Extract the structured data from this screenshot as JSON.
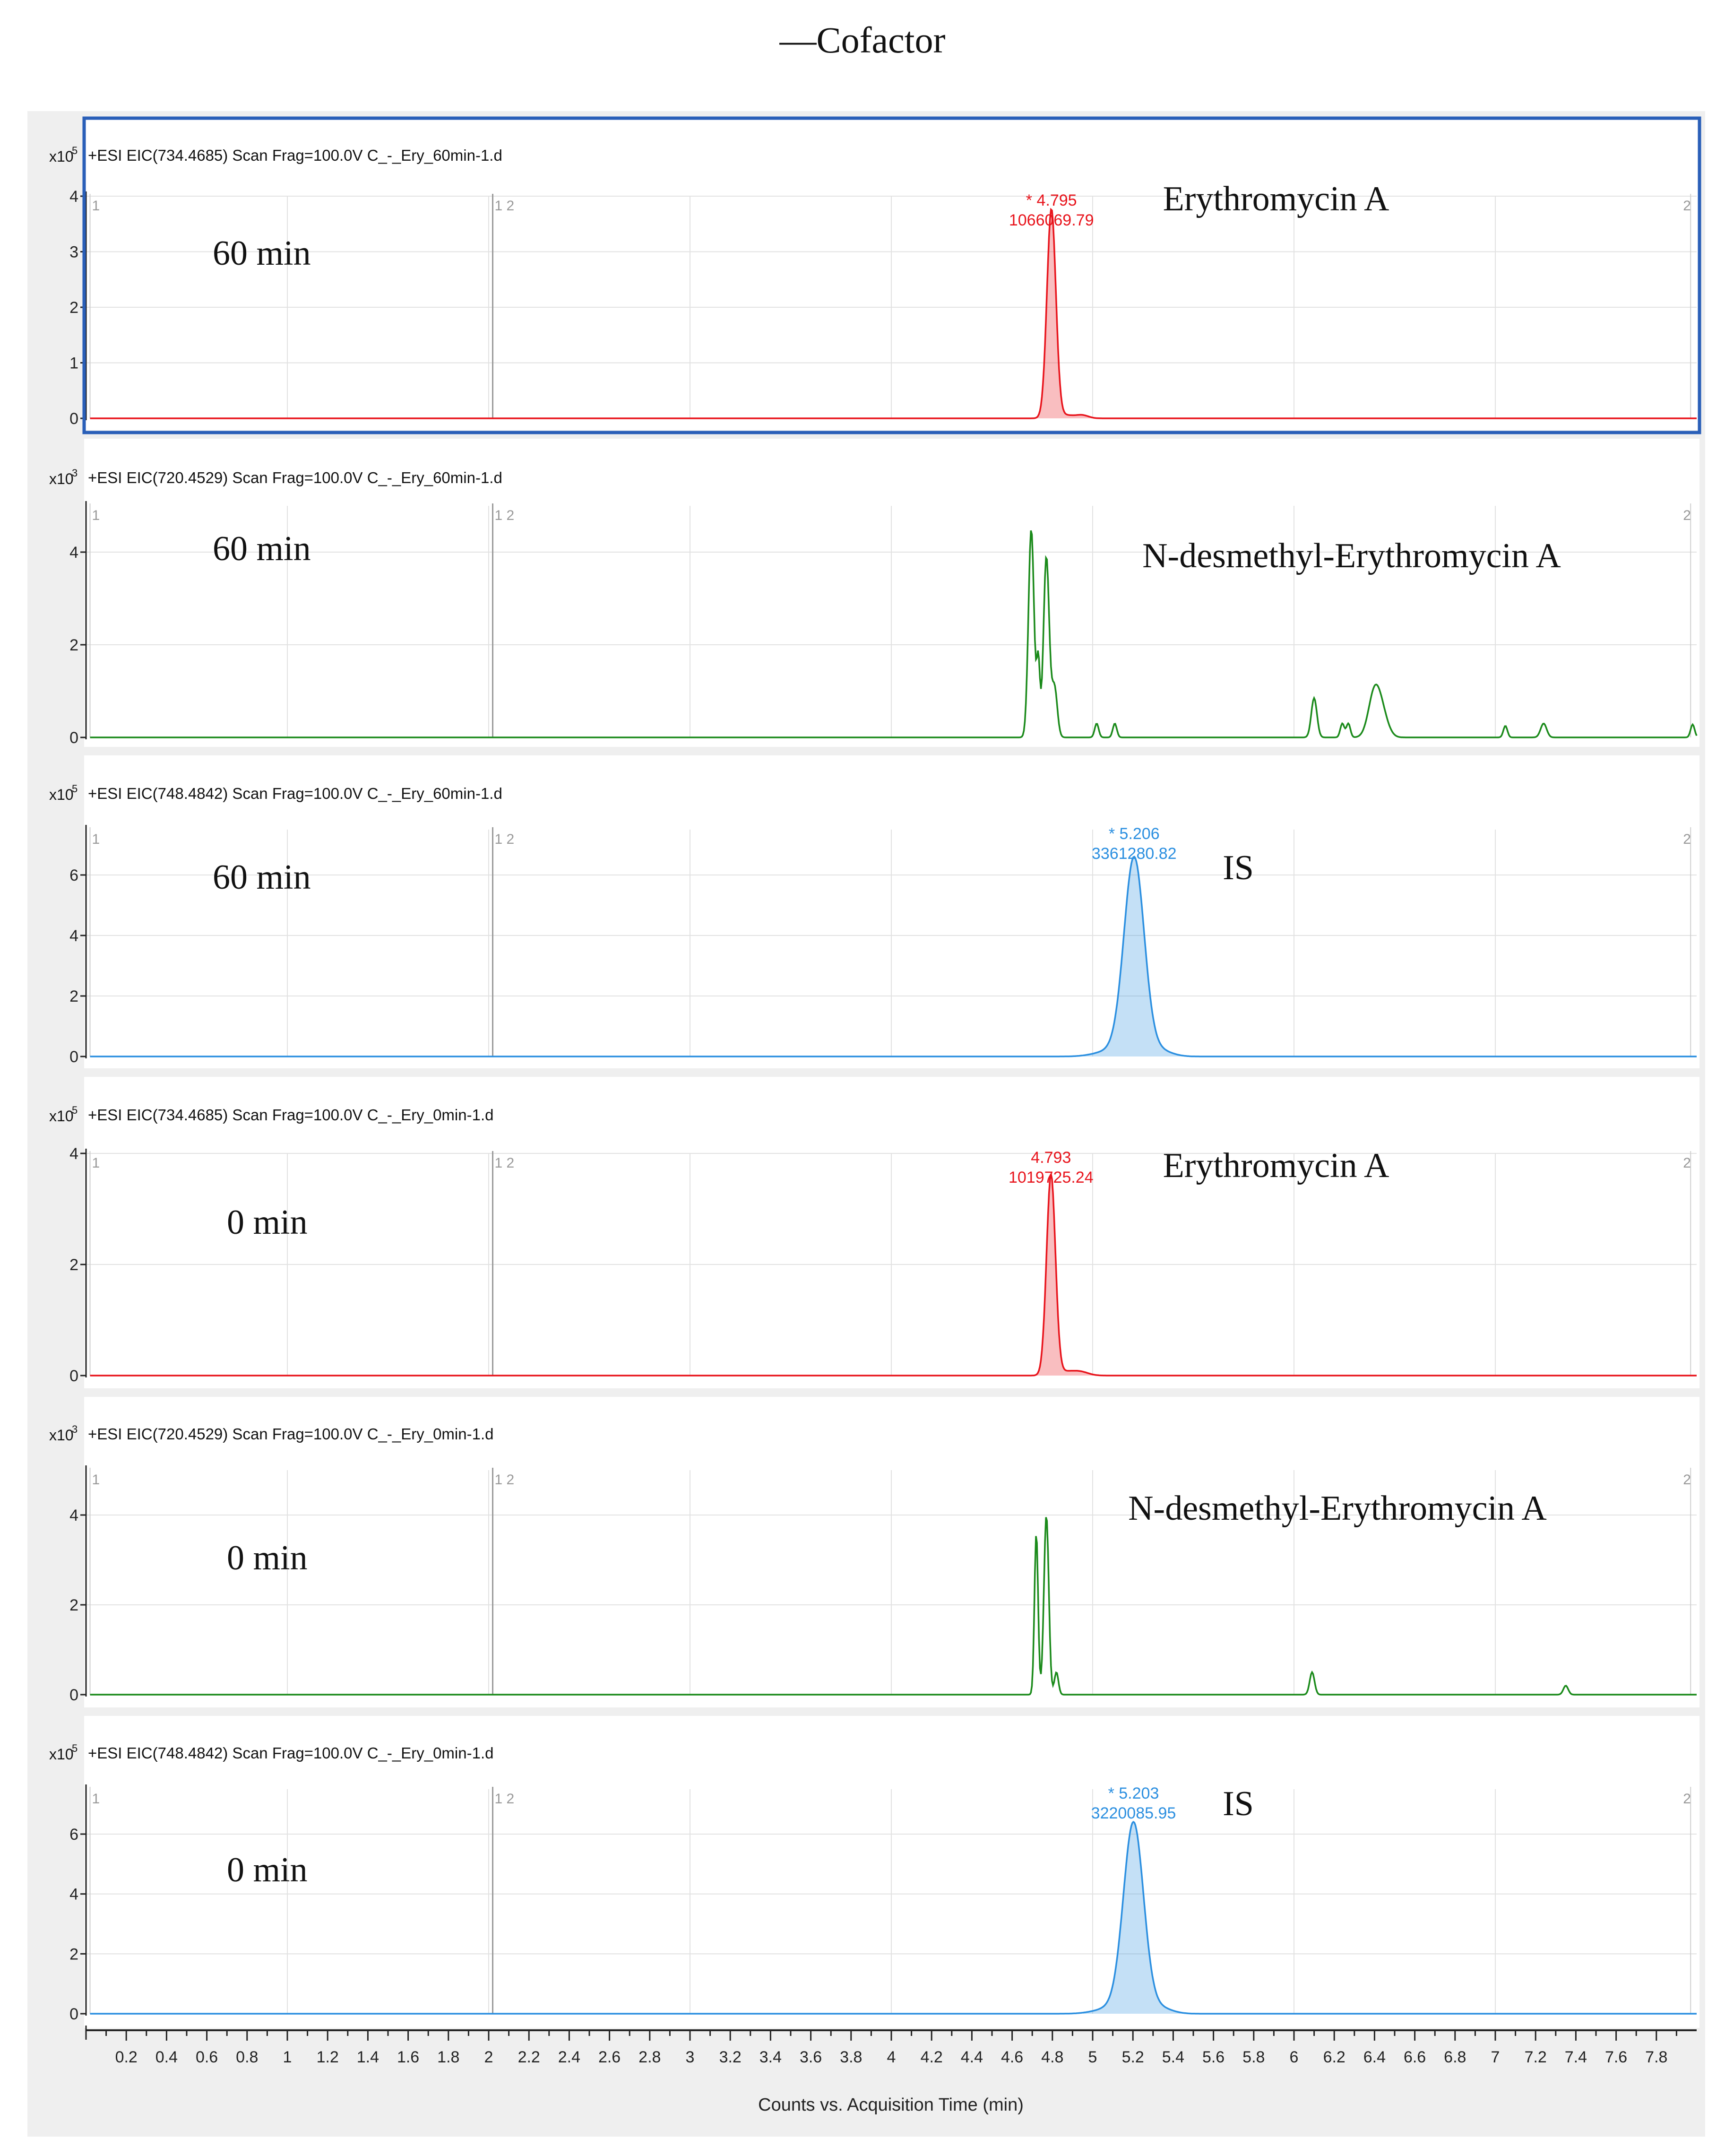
{
  "figure": {
    "title": "—Cofactor"
  },
  "chart_data": {
    "type": "line",
    "xlabel": "Counts vs. Acquisition Time (min)",
    "xlim": [
      0,
      8
    ],
    "x_ticks": [
      0.2,
      0.4,
      0.6,
      0.8,
      1,
      1.2,
      1.4,
      1.6,
      1.8,
      2,
      2.2,
      2.4,
      2.6,
      2.8,
      3,
      3.2,
      3.4,
      3.6,
      3.8,
      4,
      4.2,
      4.4,
      4.6,
      4.8,
      5,
      5.2,
      5.4,
      5.6,
      5.8,
      6,
      6.2,
      6.4,
      6.6,
      6.8,
      7,
      7.2,
      7.4,
      7.6,
      7.8
    ],
    "segment_markers": [
      {
        "x": 0.02,
        "label": "1"
      },
      {
        "x": 2.02,
        "label": "1 2"
      },
      {
        "x": 7.97,
        "label": "2"
      }
    ],
    "panels": [
      {
        "header": "+ESI EIC(734.4685) Scan Frag=100.0V C_-_Ery_60min-1.d",
        "multiplier": "x10",
        "exponent": "5",
        "color": "#e8141c",
        "highlighted": true,
        "ylim": [
          0,
          4
        ],
        "y_ticks": [
          0,
          1,
          2,
          3,
          4
        ],
        "annotation_time": "60 min",
        "compound": "Erythromycin A",
        "peak_label": {
          "rt": "* 4.795",
          "area": "1066069.79"
        },
        "filled": true,
        "peaks": [
          {
            "x": 4.795,
            "y": 3.75,
            "w": 0.022
          },
          {
            "x": 4.86,
            "y": 0.06,
            "w": 0.05
          },
          {
            "x": 4.95,
            "y": 0.05,
            "w": 0.03
          }
        ]
      },
      {
        "header": "+ESI EIC(720.4529) Scan Frag=100.0V C_-_Ery_60min-1.d",
        "multiplier": "x10",
        "exponent": "3",
        "color": "#1a8a1a",
        "highlighted": false,
        "ylim": [
          0,
          5
        ],
        "y_ticks": [
          0,
          2,
          4
        ],
        "annotation_time": "60 min",
        "compound": "N-desmethyl-Erythromycin A",
        "filled": false,
        "peaks": [
          {
            "x": 4.695,
            "y": 4.5,
            "w": 0.014
          },
          {
            "x": 4.73,
            "y": 1.6,
            "w": 0.008
          },
          {
            "x": 4.77,
            "y": 3.9,
            "w": 0.014
          },
          {
            "x": 4.81,
            "y": 1.1,
            "w": 0.014
          },
          {
            "x": 5.02,
            "y": 0.3,
            "w": 0.01
          },
          {
            "x": 5.11,
            "y": 0.3,
            "w": 0.01
          },
          {
            "x": 6.1,
            "y": 0.85,
            "w": 0.014
          },
          {
            "x": 6.24,
            "y": 0.3,
            "w": 0.01
          },
          {
            "x": 6.27,
            "y": 0.3,
            "w": 0.01
          },
          {
            "x": 6.4,
            "y": 0.95,
            "w": 0.03
          },
          {
            "x": 6.44,
            "y": 0.4,
            "w": 0.03
          },
          {
            "x": 7.05,
            "y": 0.25,
            "w": 0.01
          },
          {
            "x": 7.24,
            "y": 0.3,
            "w": 0.015
          },
          {
            "x": 7.98,
            "y": 0.28,
            "w": 0.01
          }
        ]
      },
      {
        "header": "+ESI EIC(748.4842) Scan Frag=100.0V C_-_Ery_60min-1.d",
        "multiplier": "x10",
        "exponent": "5",
        "color": "#2b8fe0",
        "highlighted": false,
        "ylim": [
          0,
          7.5
        ],
        "y_ticks": [
          0,
          2,
          4,
          6
        ],
        "annotation_time": "60 min",
        "compound": "IS",
        "peak_label": {
          "rt": "* 5.206",
          "area": "3361280.82"
        },
        "filled": true,
        "peaks": [
          {
            "x": 5.206,
            "y": 6.5,
            "w": 0.05
          },
          {
            "x": 5.1,
            "y": 0.2,
            "w": 0.08
          },
          {
            "x": 5.33,
            "y": 0.2,
            "w": 0.06
          }
        ]
      },
      {
        "header": "+ESI EIC(734.4685) Scan Frag=100.0V C_-_Ery_0min-1.d",
        "multiplier": "x10",
        "exponent": "5",
        "color": "#e8141c",
        "highlighted": false,
        "ylim": [
          0,
          4
        ],
        "y_ticks": [
          0,
          2,
          4
        ],
        "annotation_time": "0 min",
        "compound": "Erythromycin A",
        "peak_label": {
          "rt": "4.793",
          "area": "1019725.24"
        },
        "filled": true,
        "peaks": [
          {
            "x": 4.793,
            "y": 3.6,
            "w": 0.022
          },
          {
            "x": 4.86,
            "y": 0.07,
            "w": 0.05
          },
          {
            "x": 4.94,
            "y": 0.06,
            "w": 0.04
          }
        ]
      },
      {
        "header": "+ESI EIC(720.4529) Scan Frag=100.0V C_-_Ery_0min-1.d",
        "multiplier": "x10",
        "exponent": "3",
        "color": "#1a8a1a",
        "highlighted": false,
        "ylim": [
          0,
          5
        ],
        "y_ticks": [
          0,
          2,
          4
        ],
        "annotation_time": "0 min",
        "compound": "N-desmethyl-Erythromycin A",
        "filled": false,
        "peaks": [
          {
            "x": 4.72,
            "y": 3.6,
            "w": 0.009
          },
          {
            "x": 4.77,
            "y": 4.0,
            "w": 0.012
          },
          {
            "x": 4.82,
            "y": 0.5,
            "w": 0.01
          },
          {
            "x": 6.09,
            "y": 0.5,
            "w": 0.012
          },
          {
            "x": 7.35,
            "y": 0.2,
            "w": 0.012
          }
        ]
      },
      {
        "header": "+ESI EIC(748.4842) Scan Frag=100.0V C_-_Ery_0min-1.d",
        "multiplier": "x10",
        "exponent": "5",
        "color": "#2b8fe0",
        "highlighted": false,
        "ylim": [
          0,
          7.5
        ],
        "y_ticks": [
          0,
          2,
          4,
          6
        ],
        "annotation_time": "0 min",
        "compound": "IS",
        "peak_label": {
          "rt": "* 5.203",
          "area": "3220085.95"
        },
        "filled": true,
        "peaks": [
          {
            "x": 5.203,
            "y": 6.3,
            "w": 0.05
          },
          {
            "x": 5.1,
            "y": 0.2,
            "w": 0.08
          },
          {
            "x": 5.33,
            "y": 0.2,
            "w": 0.06
          }
        ]
      }
    ]
  }
}
